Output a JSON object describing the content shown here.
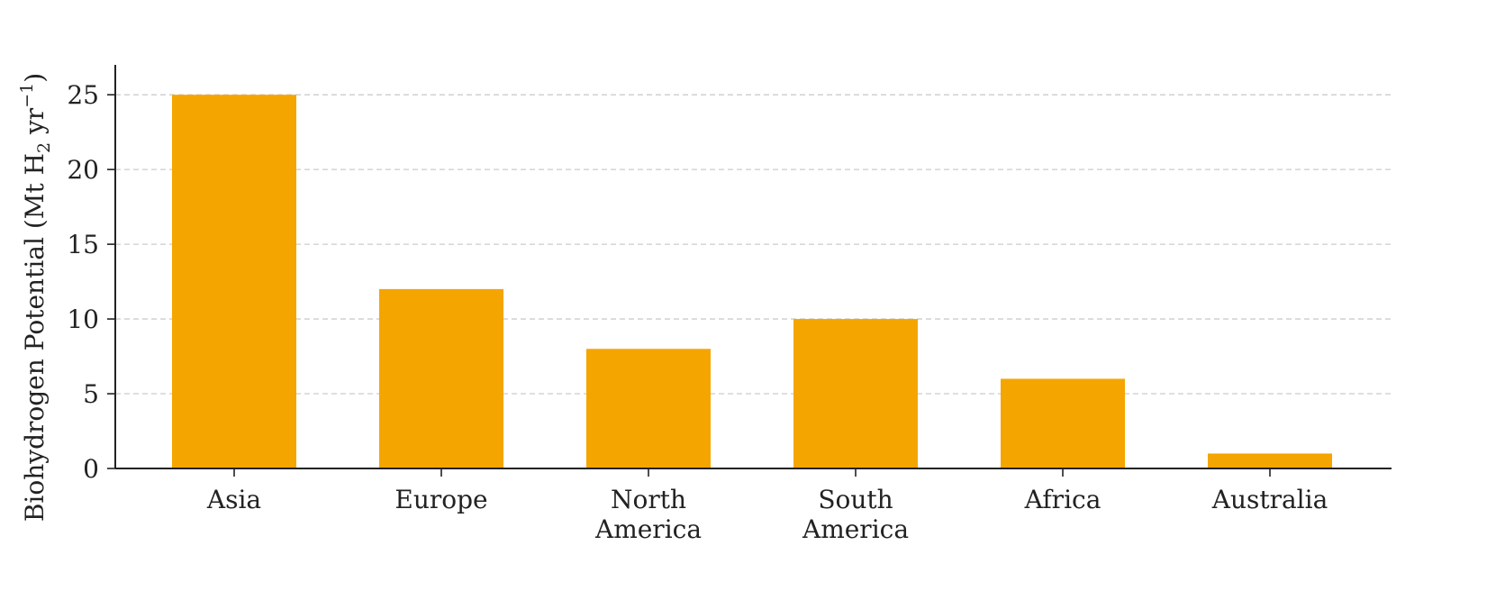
{
  "chart_data": {
    "type": "bar",
    "categories": [
      [
        "Asia"
      ],
      [
        "Europe"
      ],
      [
        "North",
        "America"
      ],
      [
        "South",
        "America"
      ],
      [
        "Africa"
      ],
      [
        "Australia"
      ]
    ],
    "values": [
      25,
      12,
      8,
      10,
      6,
      1
    ],
    "xlabel": "",
    "ylabel": {
      "main": "Biohydrogen Potential (Mt H",
      "sub": "2",
      "mid": " yr",
      "sup": "−1",
      "end": ")"
    },
    "ylim": [
      0,
      27
    ],
    "yticks": [
      0,
      5,
      10,
      15,
      20,
      25
    ],
    "grid": "y",
    "bar_color": "#F5A500",
    "legend": "none"
  }
}
